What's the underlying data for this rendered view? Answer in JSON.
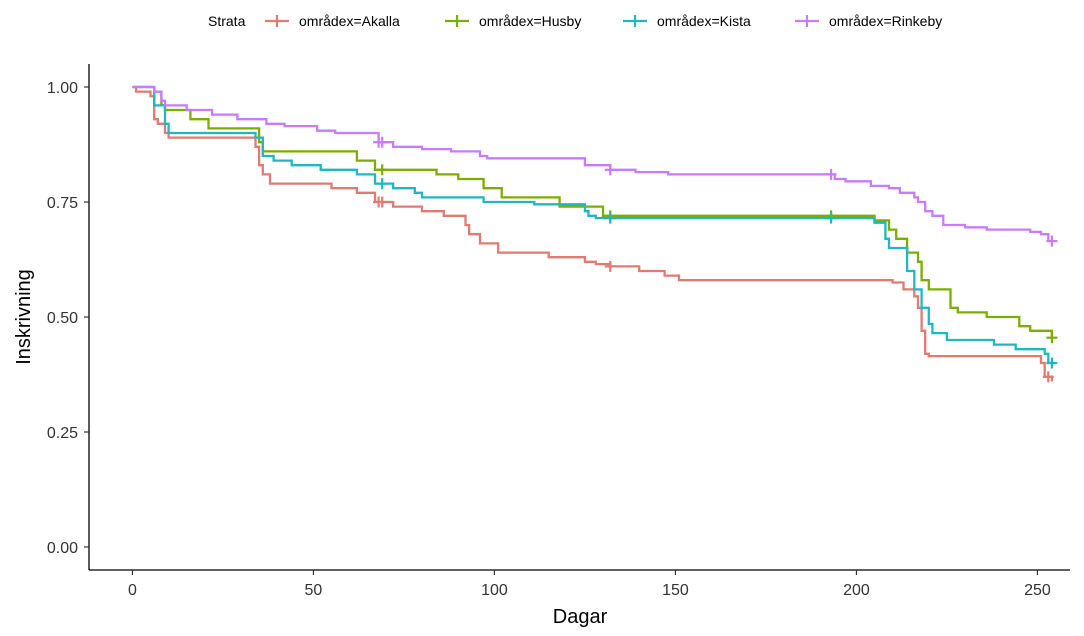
{
  "chart_data": {
    "type": "line",
    "title": "",
    "xlabel": "Dagar",
    "ylabel": "Inskrivning",
    "xlim": [
      -12,
      259
    ],
    "ylim": [
      -0.05,
      1.05
    ],
    "x_ticks": [
      0,
      50,
      100,
      150,
      200,
      250
    ],
    "x_tick_labels": [
      "0",
      "50",
      "100",
      "150",
      "200",
      "250"
    ],
    "y_ticks": [
      0,
      0.25,
      0.5,
      0.75,
      1.0
    ],
    "y_tick_labels": [
      "0.00",
      "0.25",
      "0.50",
      "0.75",
      "1.00"
    ],
    "grid": false,
    "legend": {
      "position": "top",
      "title": "Strata"
    },
    "step": true,
    "series": [
      {
        "name": "områdex=Akalla",
        "color": "#E07B73",
        "points": [
          [
            0,
            1.0
          ],
          [
            1,
            0.99
          ],
          [
            5,
            0.98
          ],
          [
            6,
            0.93
          ],
          [
            7,
            0.92
          ],
          [
            9,
            0.9
          ],
          [
            10,
            0.89
          ],
          [
            34,
            0.87
          ],
          [
            35,
            0.83
          ],
          [
            36,
            0.81
          ],
          [
            38,
            0.79
          ],
          [
            55,
            0.78
          ],
          [
            62,
            0.77
          ],
          [
            67,
            0.75
          ],
          [
            72,
            0.74
          ],
          [
            80,
            0.73
          ],
          [
            86,
            0.72
          ],
          [
            92,
            0.7
          ],
          [
            93,
            0.68
          ],
          [
            96,
            0.66
          ],
          [
            101,
            0.64
          ],
          [
            115,
            0.63
          ],
          [
            125,
            0.62
          ],
          [
            128,
            0.615
          ],
          [
            132,
            0.61
          ],
          [
            140,
            0.6
          ],
          [
            147,
            0.59
          ],
          [
            151,
            0.58
          ],
          [
            210,
            0.575
          ],
          [
            213,
            0.56
          ],
          [
            216,
            0.545
          ],
          [
            217,
            0.52
          ],
          [
            218,
            0.47
          ],
          [
            219,
            0.42
          ],
          [
            220,
            0.415
          ],
          [
            251,
            0.4
          ],
          [
            252,
            0.37
          ],
          [
            254,
            0.36
          ]
        ],
        "censor_x": [
          68,
          69,
          132,
          253
        ]
      },
      {
        "name": "områdex=Husby",
        "color": "#7CAE00",
        "points": [
          [
            0,
            1.0
          ],
          [
            6,
            0.99
          ],
          [
            8,
            0.96
          ],
          [
            9,
            0.95
          ],
          [
            16,
            0.93
          ],
          [
            21,
            0.91
          ],
          [
            35,
            0.88
          ],
          [
            36,
            0.86
          ],
          [
            62,
            0.84
          ],
          [
            67,
            0.82
          ],
          [
            84,
            0.81
          ],
          [
            90,
            0.8
          ],
          [
            97,
            0.78
          ],
          [
            102,
            0.76
          ],
          [
            118,
            0.74
          ],
          [
            130,
            0.72
          ],
          [
            205,
            0.71
          ],
          [
            209,
            0.69
          ],
          [
            211,
            0.67
          ],
          [
            214,
            0.64
          ],
          [
            217,
            0.62
          ],
          [
            218,
            0.58
          ],
          [
            220,
            0.56
          ],
          [
            226,
            0.52
          ],
          [
            228,
            0.51
          ],
          [
            236,
            0.5
          ],
          [
            245,
            0.48
          ],
          [
            248,
            0.47
          ],
          [
            254,
            0.455
          ]
        ],
        "censor_x": [
          69,
          132,
          193,
          254
        ]
      },
      {
        "name": "områdex=Kista",
        "color": "#1FB7C2",
        "points": [
          [
            0,
            1.0
          ],
          [
            6,
            0.96
          ],
          [
            9,
            0.92
          ],
          [
            10,
            0.9
          ],
          [
            34,
            0.89
          ],
          [
            36,
            0.85
          ],
          [
            39,
            0.84
          ],
          [
            44,
            0.83
          ],
          [
            52,
            0.82
          ],
          [
            62,
            0.81
          ],
          [
            67,
            0.79
          ],
          [
            72,
            0.78
          ],
          [
            78,
            0.77
          ],
          [
            80,
            0.76
          ],
          [
            97,
            0.75
          ],
          [
            111,
            0.745
          ],
          [
            125,
            0.73
          ],
          [
            126,
            0.72
          ],
          [
            128,
            0.715
          ],
          [
            205,
            0.705
          ],
          [
            208,
            0.67
          ],
          [
            209,
            0.65
          ],
          [
            214,
            0.6
          ],
          [
            216,
            0.56
          ],
          [
            218,
            0.52
          ],
          [
            220,
            0.485
          ],
          [
            221,
            0.465
          ],
          [
            225,
            0.45
          ],
          [
            238,
            0.44
          ],
          [
            244,
            0.43
          ],
          [
            252,
            0.42
          ],
          [
            253,
            0.4
          ]
        ],
        "censor_x": [
          69,
          132,
          193,
          254
        ]
      },
      {
        "name": "områdex=Rinkeby",
        "color": "#C77CFF",
        "points": [
          [
            0,
            1.0
          ],
          [
            6,
            0.99
          ],
          [
            8,
            0.97
          ],
          [
            9,
            0.96
          ],
          [
            15,
            0.95
          ],
          [
            22,
            0.94
          ],
          [
            29,
            0.93
          ],
          [
            37,
            0.92
          ],
          [
            42,
            0.915
          ],
          [
            51,
            0.905
          ],
          [
            56,
            0.9
          ],
          [
            68,
            0.88
          ],
          [
            72,
            0.87
          ],
          [
            80,
            0.865
          ],
          [
            88,
            0.86
          ],
          [
            96,
            0.85
          ],
          [
            98,
            0.845
          ],
          [
            125,
            0.83
          ],
          [
            132,
            0.82
          ],
          [
            139,
            0.815
          ],
          [
            148,
            0.81
          ],
          [
            194,
            0.8
          ],
          [
            197,
            0.795
          ],
          [
            204,
            0.785
          ],
          [
            209,
            0.78
          ],
          [
            212,
            0.77
          ],
          [
            216,
            0.76
          ],
          [
            217,
            0.75
          ],
          [
            219,
            0.73
          ],
          [
            221,
            0.72
          ],
          [
            224,
            0.7
          ],
          [
            230,
            0.695
          ],
          [
            236,
            0.69
          ],
          [
            248,
            0.685
          ],
          [
            251,
            0.68
          ],
          [
            253,
            0.665
          ]
        ],
        "censor_x": [
          68,
          69,
          132,
          193,
          254
        ]
      }
    ]
  }
}
